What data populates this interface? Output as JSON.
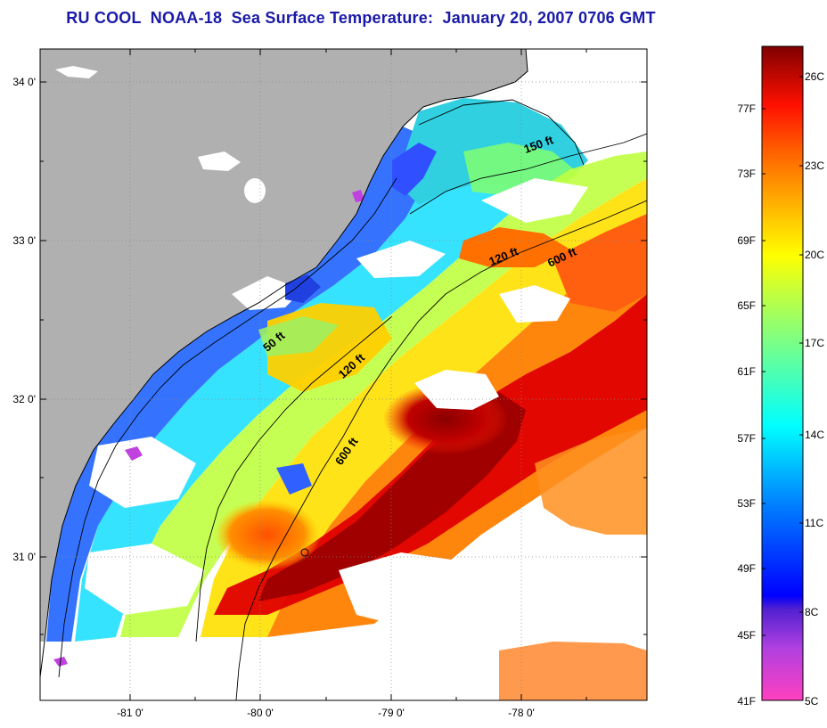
{
  "title": "RU COOL  NOAA-18  Sea Surface Temperature:  January 20, 2007 0706 GMT",
  "map": {
    "longitude_ticks": [
      "-81 0'",
      "-80 0'",
      "-79 0'",
      "-78 0'"
    ],
    "latitude_ticks": [
      "34 0'",
      "33 0'",
      "32 0'",
      "31 0'"
    ],
    "contour_labels": [
      "150 ft",
      "120 ft",
      "600 ft",
      "50 ft",
      "120 ft",
      "600 ft"
    ]
  },
  "colorbar": {
    "fahrenheit_labels": [
      "77F",
      "73F",
      "69F",
      "65F",
      "61F",
      "57F",
      "53F",
      "49F",
      "45F",
      "41F"
    ],
    "celsius_labels": [
      "26C",
      "23C",
      "20C",
      "17C",
      "14C",
      "11C",
      "8C",
      "5C"
    ]
  },
  "colors": {
    "land": "#b0b0b0",
    "cloud": "#ffffff",
    "title": "#1a1aa8"
  }
}
